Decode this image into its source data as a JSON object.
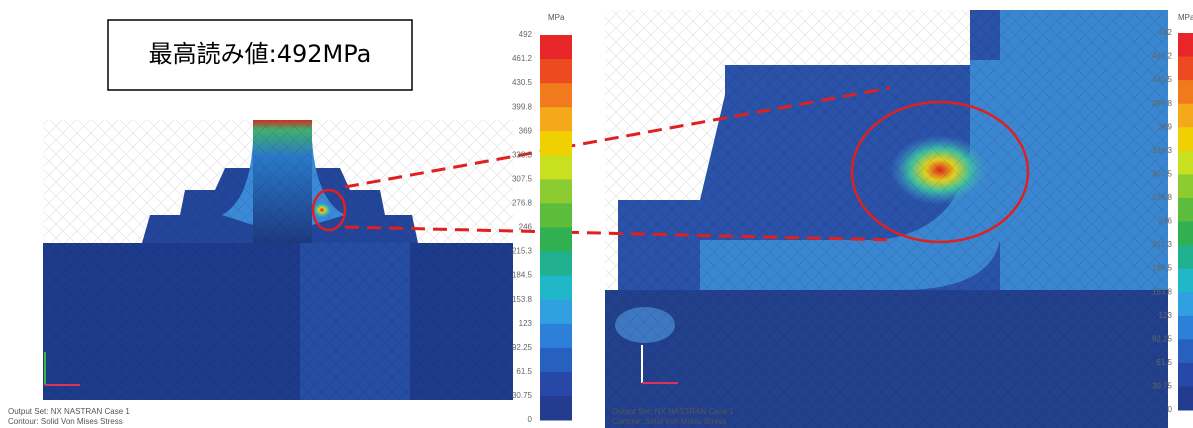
{
  "callout": "最高読み値:492MPa",
  "legend": {
    "unit": "MPa",
    "labels": [
      "492",
      "461.2",
      "430.5",
      "399.8",
      "369",
      "338.3",
      "307.5",
      "276.8",
      "246",
      "215.3",
      "184.5",
      "153.8",
      "123",
      "92.25",
      "61.5",
      "30.75",
      "0"
    ]
  },
  "footer": [
    "Output Set: NX NASTRAN Case 1",
    "Contour: Solid Von Mises Stress"
  ]
}
